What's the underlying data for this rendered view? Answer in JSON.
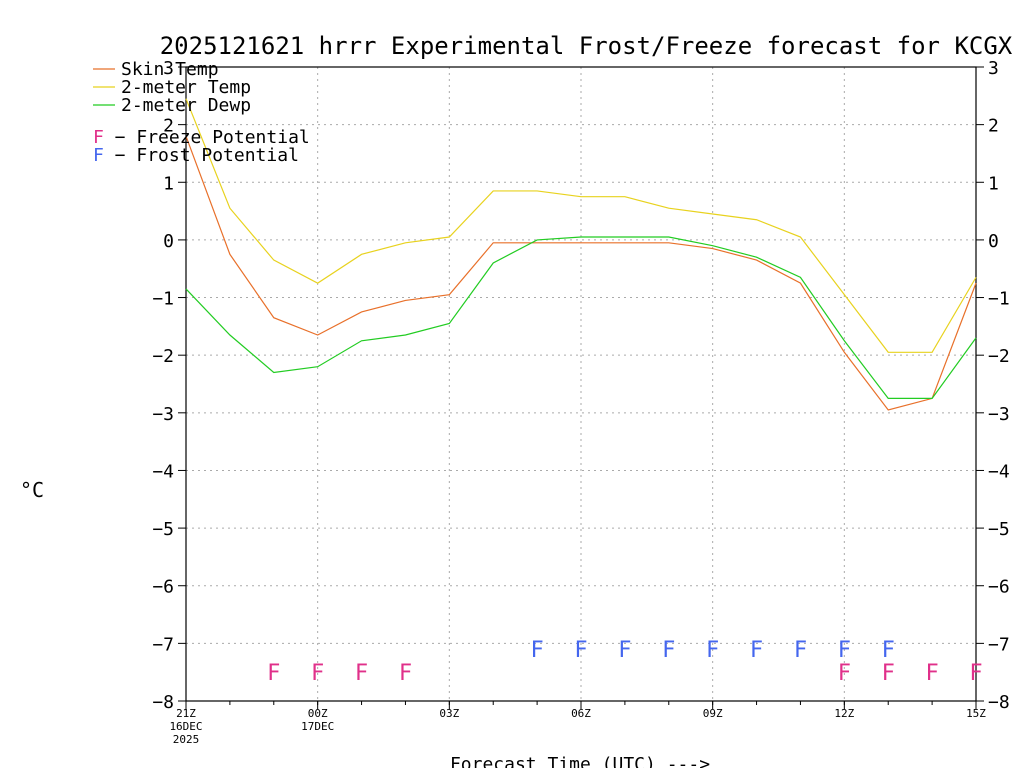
{
  "chart_data": {
    "type": "line",
    "title": "2025121621 hrrr Experimental Frost/Freeze forecast for KCGX",
    "ylabel": "°C",
    "xlabel": "Forecast Time (UTC) --->",
    "ylim": [
      -8,
      3
    ],
    "yticks": [
      -8,
      -7,
      -6,
      -5,
      -4,
      -3,
      -2,
      -1,
      0,
      1,
      2,
      3
    ],
    "ytick_labels": [
      "−8",
      "−7",
      "−6",
      "−5",
      "−4",
      "−3",
      "−2",
      "−1",
      "0",
      "1",
      "2",
      "3"
    ],
    "x_hours": [
      0,
      1,
      2,
      3,
      4,
      5,
      6,
      7,
      8,
      9,
      10,
      11,
      12,
      13,
      14,
      15,
      16,
      17,
      18
    ],
    "xlim": [
      0,
      18
    ],
    "grid": true,
    "xticks": [
      {
        "hour": 0,
        "label": "21Z",
        "sub1": "16DEC",
        "sub2": "2025"
      },
      {
        "hour": 3,
        "label": "00Z",
        "sub1": "17DEC",
        "sub2": ""
      },
      {
        "hour": 6,
        "label": "03Z",
        "sub1": "",
        "sub2": ""
      },
      {
        "hour": 9,
        "label": "06Z",
        "sub1": "",
        "sub2": ""
      },
      {
        "hour": 12,
        "label": "09Z",
        "sub1": "",
        "sub2": ""
      },
      {
        "hour": 15,
        "label": "12Z",
        "sub1": "",
        "sub2": ""
      },
      {
        "hour": 18,
        "label": "15Z",
        "sub1": "",
        "sub2": ""
      }
    ],
    "series": [
      {
        "name": "Skin Temp",
        "color": "#e8702a",
        "values": [
          1.8,
          -0.25,
          -1.35,
          -1.65,
          -1.25,
          -1.05,
          -0.95,
          -0.05,
          -0.05,
          -0.05,
          -0.05,
          -0.05,
          -0.15,
          -0.35,
          -0.75,
          -1.95,
          -2.95,
          -2.75,
          -0.75
        ]
      },
      {
        "name": "2-meter Temp",
        "color": "#e8d21e",
        "values": [
          2.45,
          0.55,
          -0.35,
          -0.75,
          -0.25,
          -0.05,
          0.05,
          0.85,
          0.85,
          0.75,
          0.75,
          0.55,
          0.45,
          0.35,
          0.05,
          -0.95,
          -1.95,
          -1.95,
          -0.65
        ]
      },
      {
        "name": "2-meter Dewp",
        "color": "#22cc22",
        "values": [
          -0.85,
          -1.65,
          -2.3,
          -2.2,
          -1.75,
          -1.65,
          -1.45,
          -0.4,
          0.0,
          0.05,
          0.05,
          0.05,
          -0.1,
          -0.3,
          -0.65,
          -1.75,
          -2.75,
          -2.75,
          -1.7
        ]
      }
    ],
    "flags": {
      "freeze": {
        "label": "F − Freeze Potential",
        "symbol": "F",
        "color": "#e0308a",
        "level": -7.5,
        "hours": [
          2,
          3,
          4,
          5,
          15,
          16,
          17,
          18
        ]
      },
      "frost": {
        "label": "F − Frost Potential",
        "symbol": "F",
        "color": "#4466ee",
        "level": -7.1,
        "hours": [
          8,
          9,
          10,
          11,
          12,
          13,
          14,
          15,
          16
        ]
      }
    },
    "legend_position": "top-left"
  }
}
